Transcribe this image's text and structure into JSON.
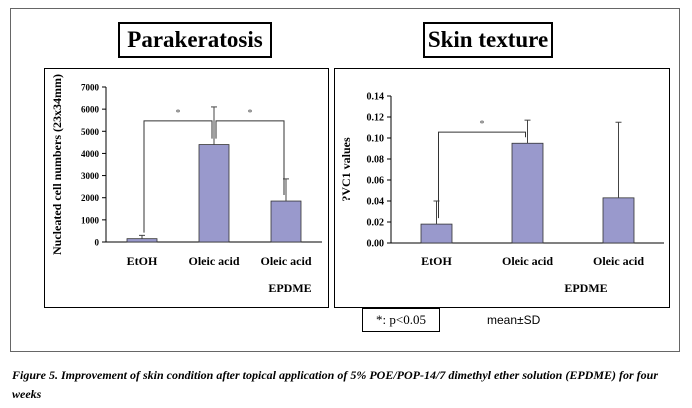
{
  "figure": {
    "caption": "Figure 5. Improvement of skin condition after topical application of 5% POE/POP-14/7 dimethyl ether solution (EPDME) for four weeks",
    "significance_note": "*: p<0.05",
    "error_note": "mean±SD"
  },
  "chart_data": [
    {
      "type": "bar",
      "title": "Parakeratosis",
      "ylabel": "Nucleated cell numbers (23x34mm)",
      "ylim": [
        0,
        7000
      ],
      "yticks": [
        "0",
        "1000",
        "2000",
        "3000",
        "4000",
        "5000",
        "6000",
        "7000"
      ],
      "categories": [
        "EtOH",
        "Oleic acid",
        "Oleic acid"
      ],
      "category_sublabel": "EPDME",
      "values": [
        150,
        4400,
        1850
      ],
      "errors": [
        150,
        1700,
        1000
      ],
      "significance": [
        {
          "from": 0,
          "to": 1,
          "label": "*"
        },
        {
          "from": 1,
          "to": 2,
          "label": "*"
        }
      ],
      "bar_color": "#9999cc"
    },
    {
      "type": "bar",
      "title": "Skin texture",
      "ylabel": "?VC1 values",
      "ylim": [
        0,
        0.14
      ],
      "yticks": [
        "0.00",
        "0.02",
        "0.04",
        "0.06",
        "0.08",
        "0.10",
        "0.12",
        "0.14"
      ],
      "categories": [
        "EtOH",
        "Oleic acid",
        "Oleic acid"
      ],
      "category_sublabel": "EPDME",
      "values": [
        0.018,
        0.095,
        0.043
      ],
      "errors": [
        0.022,
        0.022,
        0.072
      ],
      "significance": [
        {
          "from": 0,
          "to": 1,
          "label": "*"
        }
      ],
      "bar_color": "#9999cc"
    }
  ]
}
